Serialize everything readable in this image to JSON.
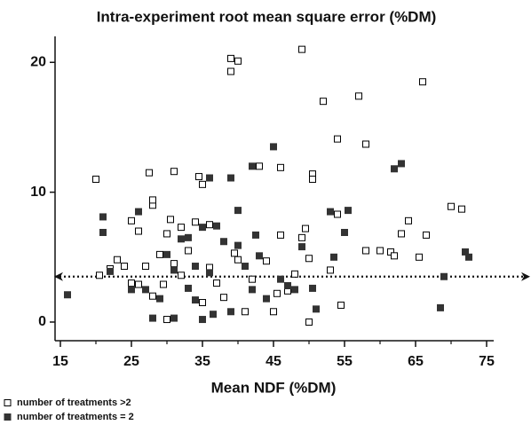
{
  "chart_data": {
    "type": "scatter",
    "title": "Intra-experiment root mean square error (%DM)",
    "x_label": "Mean NDF (%DM)",
    "xlim": [
      14,
      76
    ],
    "ylim": [
      -1.3,
      22
    ],
    "xticks": [
      15,
      25,
      35,
      45,
      55,
      65,
      75
    ],
    "xminor_ticks": [
      20,
      30,
      40,
      50,
      60,
      70
    ],
    "yticks": [
      0,
      10,
      20
    ],
    "reference_line": 3.5,
    "series": [
      {
        "name": "number of treatments >2",
        "color": "#000000",
        "marker": "open",
        "x": [
          20,
          20.5,
          22,
          23,
          24,
          25,
          25,
          26,
          26,
          27,
          27.5,
          28,
          28,
          28,
          29,
          29.5,
          30,
          30,
          30.5,
          31,
          31,
          32,
          32,
          33,
          34,
          34.5,
          35,
          35,
          36,
          36,
          37,
          38,
          39,
          39,
          40,
          39.5,
          40,
          41,
          42,
          43,
          44,
          45,
          45.5,
          46,
          46,
          47,
          48,
          49,
          49,
          49.5,
          50,
          50.5,
          50.5,
          50,
          52,
          53,
          54,
          54,
          54.5,
          57,
          58,
          58,
          60,
          61.5,
          62,
          63,
          64,
          66,
          65.5,
          66.5,
          70,
          71.5
        ],
        "y": [
          11,
          3.6,
          4.1,
          4.8,
          4.3,
          7.8,
          3,
          2.9,
          7,
          4.3,
          11.5,
          9,
          9.4,
          2,
          5.2,
          2.9,
          0.2,
          6.8,
          7.9,
          4.5,
          11.6,
          7.3,
          3.6,
          5.5,
          7.7,
          11.2,
          10.6,
          1.5,
          7.5,
          4.2,
          3,
          1.9,
          20.3,
          19.3,
          20.1,
          5.3,
          4.8,
          0.8,
          3.3,
          12,
          4.7,
          0.8,
          2.2,
          11.9,
          6.7,
          2.4,
          3.7,
          21,
          6.5,
          7.2,
          4.9,
          11.4,
          11,
          0,
          17,
          4,
          14.1,
          8.3,
          1.3,
          17.4,
          5.5,
          13.7,
          5.5,
          5.4,
          5.1,
          6.8,
          7.8,
          18.5,
          5,
          6.7,
          8.9,
          8.7
        ]
      },
      {
        "name": "number of treatments = 2",
        "color": "#333333",
        "marker": "filled",
        "x": [
          16,
          21,
          21,
          22,
          25,
          26,
          27,
          28,
          29,
          30,
          31,
          31,
          32,
          33,
          33,
          34,
          34,
          35,
          35,
          36,
          36,
          36.5,
          37,
          38,
          39,
          39,
          40,
          40,
          41,
          42,
          42,
          42.5,
          43,
          44,
          45,
          46,
          47,
          48,
          49,
          50.5,
          51,
          53,
          53.5,
          55,
          55.5,
          63,
          62,
          68.5,
          69,
          72,
          72.5
        ],
        "y": [
          2.1,
          8.1,
          6.9,
          3.9,
          2.5,
          8.5,
          2.5,
          0.3,
          1.8,
          5.2,
          4,
          0.3,
          6.4,
          6.5,
          2.6,
          4.3,
          1.7,
          0.2,
          7.3,
          11.1,
          3.8,
          0.6,
          7.4,
          6.2,
          11.1,
          0.8,
          8.6,
          5.9,
          4.3,
          12,
          2.5,
          6.7,
          5.1,
          1.8,
          13.5,
          3.3,
          2.8,
          2.5,
          5.8,
          2.6,
          1,
          8.5,
          5,
          6.9,
          8.6,
          12.2,
          11.8,
          1.1,
          3.5,
          5.4,
          5
        ]
      }
    ]
  }
}
